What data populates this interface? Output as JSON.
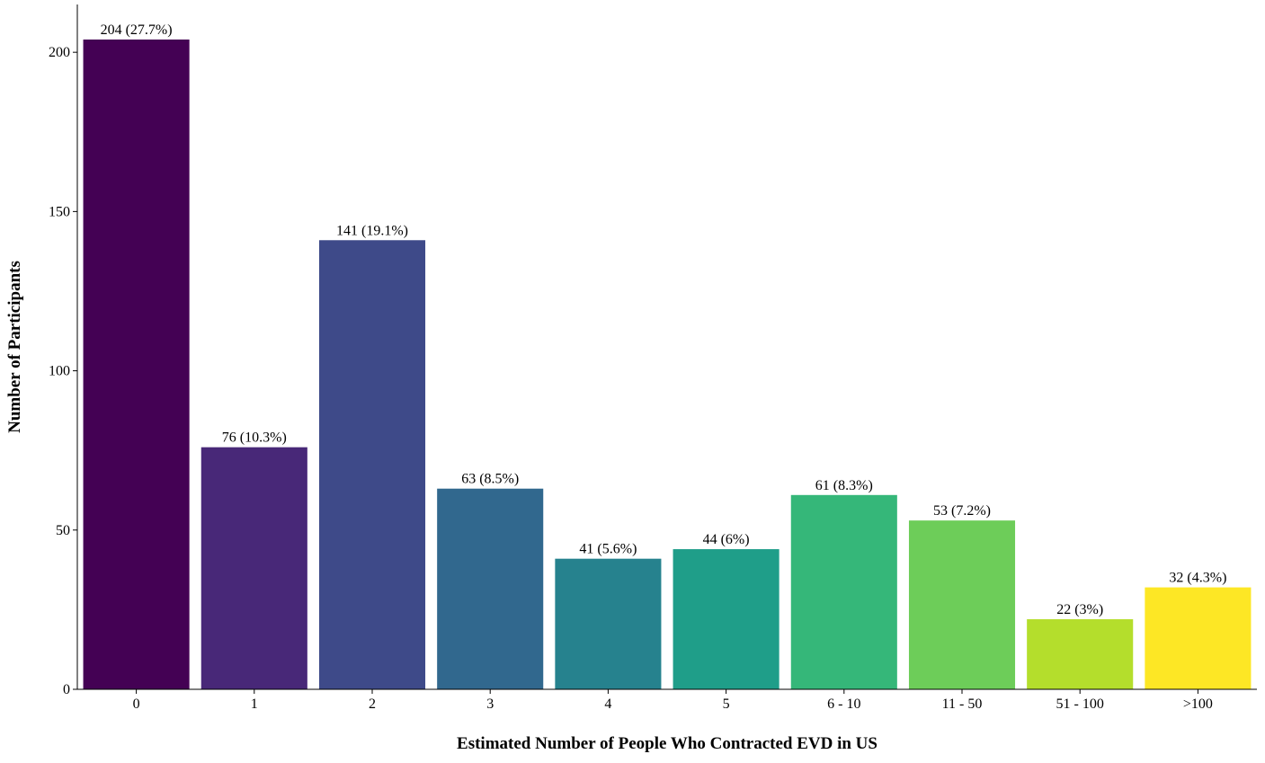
{
  "chart_data": {
    "type": "bar",
    "title": "",
    "xlabel": "Estimated Number of People Who Contracted EVD in US",
    "ylabel": "Number of Participants",
    "categories": [
      "0",
      "1",
      "2",
      "3",
      "4",
      "5",
      "6 - 10",
      "11 - 50",
      "51 - 100",
      ">100"
    ],
    "values": [
      204,
      76,
      141,
      63,
      41,
      44,
      61,
      53,
      22,
      32
    ],
    "data_labels": [
      "204 (27.7%)",
      "76 (10.3%)",
      "141 (19.1%)",
      "63 (8.5%)",
      "41 (5.6%)",
      "44 (6%)",
      "61 (8.3%)",
      "53 (7.2%)",
      "22 (3%)",
      "32 (4.3%)"
    ],
    "colors": [
      "#440154",
      "#482878",
      "#3E4A89",
      "#31688E",
      "#26828E",
      "#1F9E89",
      "#35B779",
      "#6DCD59",
      "#B4DE2C",
      "#FDE725"
    ],
    "y_ticks": [
      0,
      50,
      100,
      150,
      200
    ],
    "y_tick_labels": [
      "0",
      "50",
      "100",
      "150",
      "200"
    ],
    "ylim": [
      0,
      215
    ],
    "grid": false,
    "legend": "none"
  }
}
